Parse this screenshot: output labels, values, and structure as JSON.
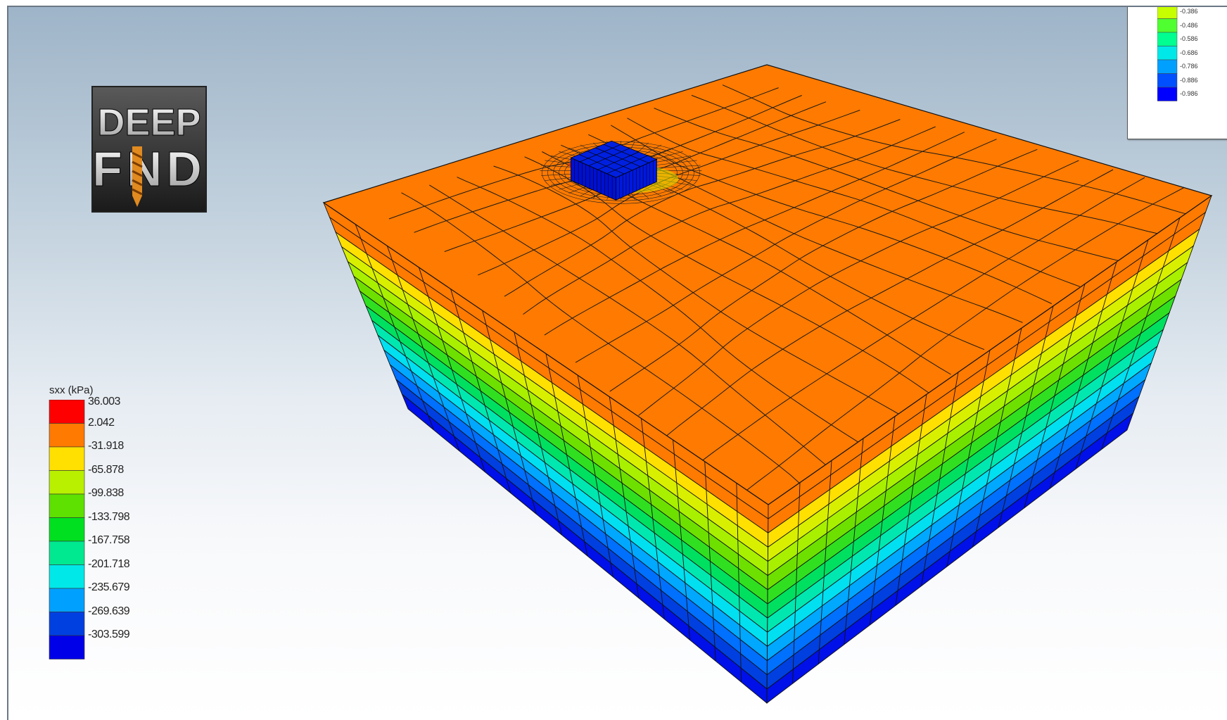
{
  "logo": {
    "line1": "DEEP",
    "line2": "FND",
    "icon": "drill-bit-icon"
  },
  "legend_left": {
    "title": "sxx (kPa)",
    "values": [
      "36.003",
      "2.042",
      "-31.918",
      "-65.878",
      "-99.838",
      "-133.798",
      "-167.758",
      "-201.718",
      "-235.679",
      "-269.639",
      "-303.599"
    ],
    "colors": [
      "#ff0000",
      "#ff7a00",
      "#ffe000",
      "#b8f000",
      "#5ee000",
      "#00e020",
      "#00e890",
      "#00e8e8",
      "#00a0ff",
      "#0040e0",
      "#0000e8"
    ]
  },
  "legend_right": {
    "values": [
      "-0.386",
      "-0.486",
      "-0.586",
      "-0.686",
      "-0.786",
      "-0.886",
      "-0.986"
    ],
    "colors": [
      "#c8ff00",
      "#50ff30",
      "#00ff90",
      "#00e8e8",
      "#00a0ff",
      "#0050ff",
      "#0000ff"
    ]
  },
  "model": {
    "top_color": "#ff7a00",
    "layer_colors": [
      "#ff7a00",
      "#ff7a00",
      "#ffe000",
      "#d8f000",
      "#a8f000",
      "#6ee000",
      "#30e020",
      "#00e060",
      "#00e8b0",
      "#00e0f0",
      "#00a8ff",
      "#0070ff",
      "#0040e0",
      "#0010e8"
    ],
    "footing_color": "#0020e0"
  }
}
